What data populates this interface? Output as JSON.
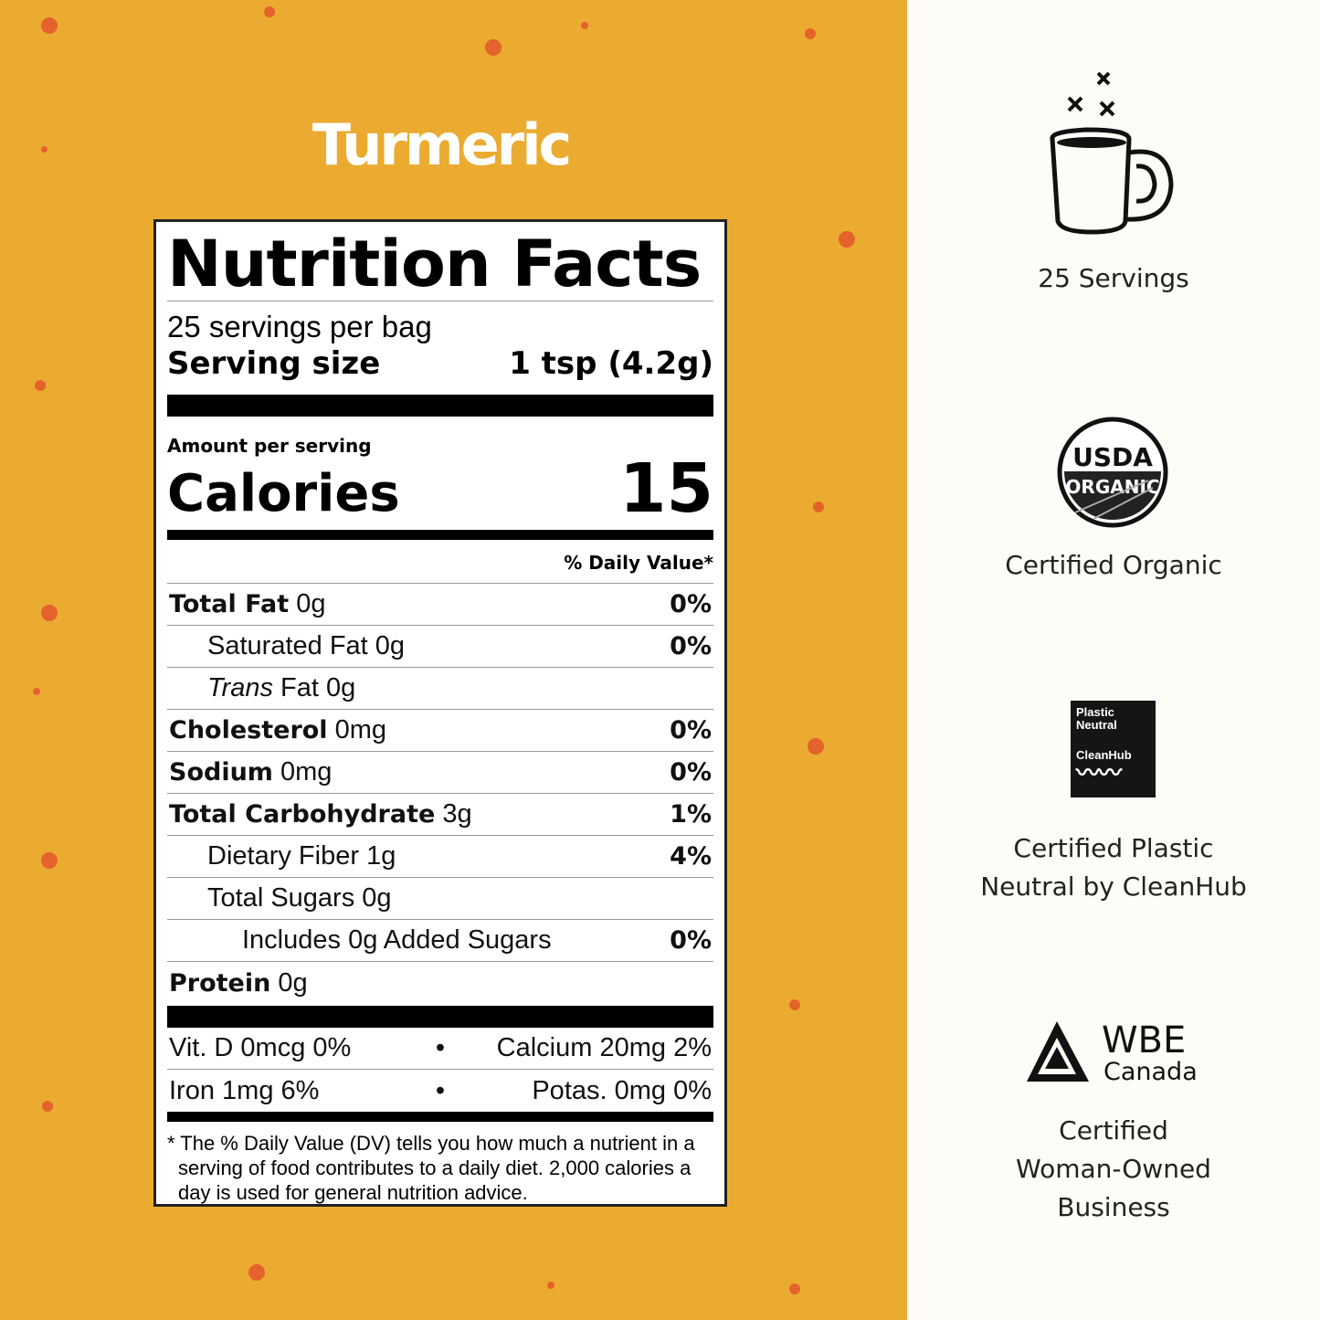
{
  "brand_colors": {
    "background": "#ebab31",
    "dots": "#e4622b",
    "panel": "#fdfcf6"
  },
  "title": "Turmeric",
  "label": {
    "heading": "Nutrition Facts",
    "servings": "25 servings per bag",
    "serving_size_label": "Serving size",
    "serving_size_value": "1 tsp (4.2g)",
    "amount_per_serving": "Amount per serving",
    "calories_label": "Calories",
    "calories_value": "15",
    "dv_header": "% Daily Value*",
    "nutrients": [
      {
        "name": "Total Fat",
        "amount": "0g",
        "dv": "0%",
        "bold": true,
        "indent": 0
      },
      {
        "name": "Saturated Fat",
        "amount": "0g",
        "dv": "0%",
        "bold": false,
        "indent": 1
      },
      {
        "name": "Trans",
        "amount": "Fat 0g",
        "dv": "",
        "bold": false,
        "indent": 1,
        "italic": true
      },
      {
        "name": "Cholesterol",
        "amount": "0mg",
        "dv": "0%",
        "bold": true,
        "indent": 0
      },
      {
        "name": "Sodium",
        "amount": "0mg",
        "dv": "0%",
        "bold": true,
        "indent": 0
      },
      {
        "name": "Total Carbohydrate",
        "amount": "3g",
        "dv": "1%",
        "bold": true,
        "indent": 0
      },
      {
        "name": "Dietary Fiber",
        "amount": "1g",
        "dv": "4%",
        "bold": false,
        "indent": 1
      },
      {
        "name": "Total Sugars",
        "amount": "0g",
        "dv": "",
        "bold": false,
        "indent": 1
      },
      {
        "name": "Includes 0g Added Sugars",
        "amount": "",
        "dv": "0%",
        "bold": false,
        "indent": 2
      },
      {
        "name": "Protein",
        "amount": "0g",
        "dv": "",
        "bold": true,
        "indent": 0
      }
    ],
    "vitamins": [
      {
        "left": "Vit. D 0mcg 0%",
        "right": "Calcium 20mg 2%"
      },
      {
        "left": "Iron 1mg 6%",
        "right": "Potas. 0mg 0%"
      }
    ],
    "bullet": "•",
    "footnote": "* The % Daily Value (DV) tells you how much a nutrient in a serving of food contributes to a daily diet. 2,000 calories a day is used for general nutrition advice."
  },
  "features": [
    {
      "icon": "coffee-mug-icon",
      "text": "25 Servings"
    },
    {
      "icon": "usda-organic-seal",
      "text": "Certified Organic",
      "logo_text": "USDA ORGANIC"
    },
    {
      "icon": "plastic-neutral-cleanhub-logo",
      "text": "Certified Plastic Neutral by CleanHub",
      "logo_text": "Plastic Neutral CleanHub"
    },
    {
      "icon": "wbe-canada-logo",
      "text": "Certified Woman-Owned Business",
      "logo_text": "WBE Canada"
    }
  ]
}
